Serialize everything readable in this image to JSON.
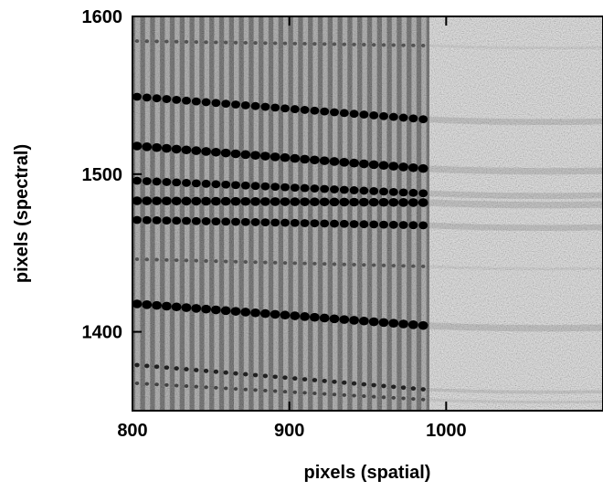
{
  "chart_data": {
    "type": "image",
    "x_label": "pixels (spatial)",
    "y_label": "pixels (spectral)",
    "xlim": [
      800,
      1100
    ],
    "ylim": [
      1350,
      1600
    ],
    "xticks": [
      800,
      900,
      1000
    ],
    "yticks": [
      1400,
      1500,
      1600
    ]
  }
}
